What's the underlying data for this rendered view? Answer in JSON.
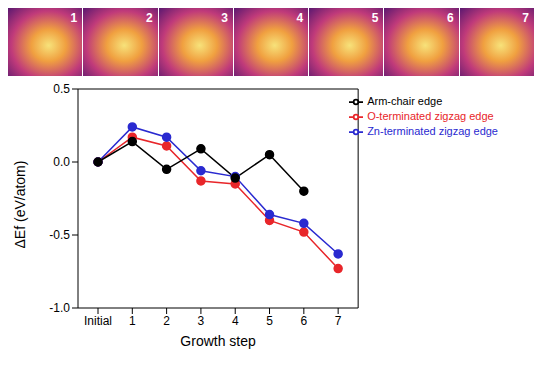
{
  "chart_data": {
    "type": "line",
    "categories": [
      "Initial",
      "1",
      "2",
      "3",
      "4",
      "5",
      "6",
      "7"
    ],
    "x_label": "Growth step",
    "y_label": "ΔEf (eV/atom)",
    "ylim": [
      -1.0,
      0.5
    ],
    "yticks": [
      {
        "value": -1.0,
        "label": "-1.0"
      },
      {
        "value": -0.5,
        "label": "-0.5"
      },
      {
        "value": 0,
        "label": "0.0"
      },
      {
        "value": 0.5,
        "label": "0.5"
      }
    ],
    "grid": false,
    "legend": "upper right",
    "series": [
      {
        "name": "O-terminated zigzag edge",
        "color": "#e8262a",
        "marker": "circle",
        "values": [
          0,
          0.17,
          0.11,
          -0.13,
          -0.15,
          -0.4,
          -0.48,
          -0.73
        ]
      },
      {
        "name": "Zn-terminated zigzag edge",
        "color": "#2a2ad0",
        "marker": "circle",
        "values": [
          0,
          0.24,
          0.17,
          -0.06,
          -0.1,
          -0.36,
          -0.42,
          -0.63
        ]
      },
      {
        "name": "Arm-chair edge",
        "color": "#000000",
        "marker": "circle",
        "values": [
          0,
          0.14,
          -0.05,
          0.09,
          -0.11,
          0.05,
          -0.2,
          null
        ]
      }
    ]
  },
  "panels": {
    "labels": [
      "1",
      "2",
      "3",
      "4",
      "5",
      "6",
      "7"
    ]
  }
}
